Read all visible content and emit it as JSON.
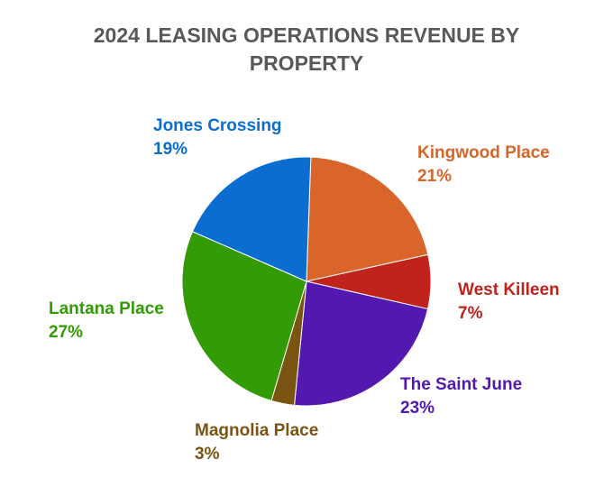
{
  "chart_data": {
    "type": "pie",
    "title": "2024 LEASING OPERATIONS REVENUE BY PROPERTY",
    "start_angle_deg": 2,
    "direction": "clockwise",
    "slices": [
      {
        "label": "Kingwood Place",
        "value": 21,
        "value_label": "21%",
        "color": "#d9652a"
      },
      {
        "label": "West Killeen",
        "value": 7,
        "value_label": "7%",
        "color": "#c0231b"
      },
      {
        "label": "The Saint June",
        "value": 23,
        "value_label": "23%",
        "color": "#5218b0"
      },
      {
        "label": "Magnolia Place",
        "value": 3,
        "value_label": "3%",
        "color": "#7a5412"
      },
      {
        "label": "Lantana Place",
        "value": 27,
        "value_label": "27%",
        "color": "#339b06"
      },
      {
        "label": "Jones Crossing",
        "value": 19,
        "value_label": "19%",
        "color": "#0b6dcf"
      }
    ]
  }
}
